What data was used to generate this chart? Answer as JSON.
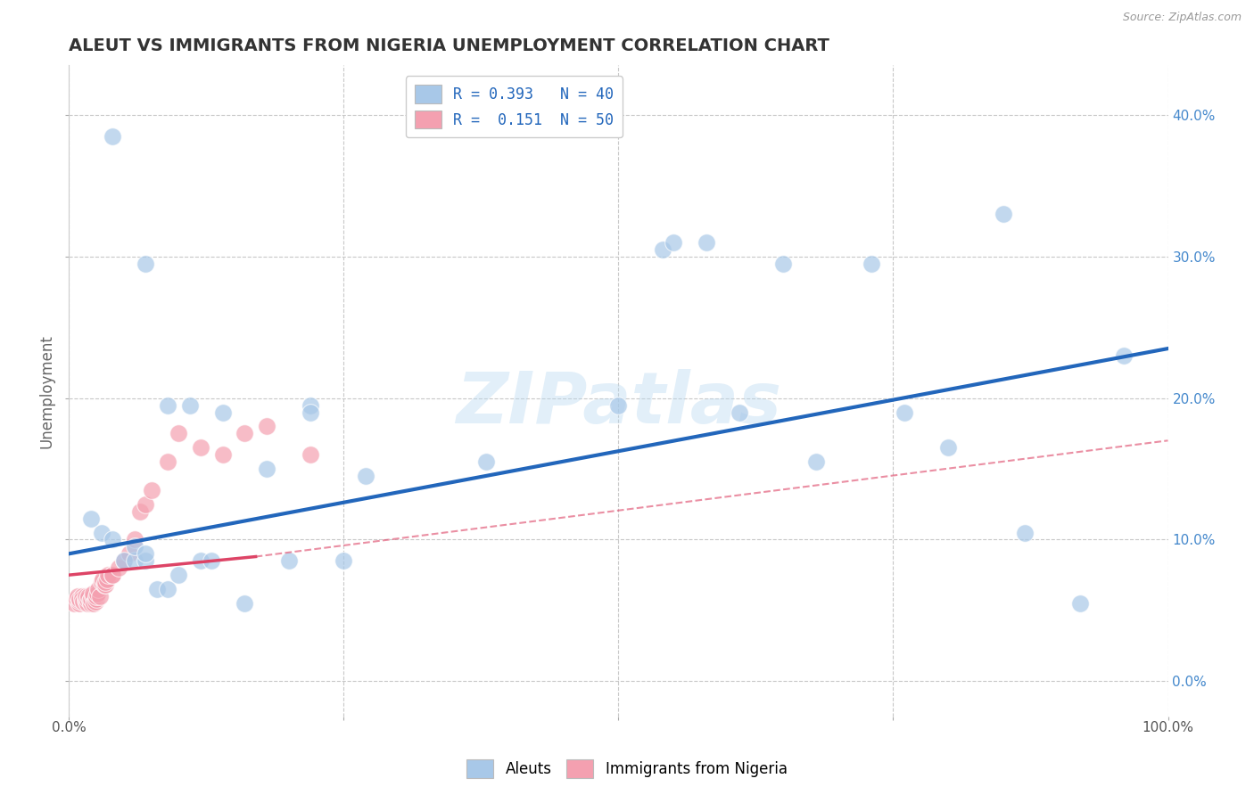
{
  "title": "ALEUT VS IMMIGRANTS FROM NIGERIA UNEMPLOYMENT CORRELATION CHART",
  "source": "Source: ZipAtlas.com",
  "ylabel": "Unemployment",
  "xlim": [
    0,
    1
  ],
  "ylim": [
    -0.025,
    0.435
  ],
  "yticks": [
    0.0,
    0.1,
    0.2,
    0.3,
    0.4
  ],
  "ytick_labels": [
    "0.0%",
    "10.0%",
    "20.0%",
    "30.0%",
    "40.0%"
  ],
  "legend_r1": "R = 0.393",
  "legend_n1": "N = 40",
  "legend_r2": "R =  0.151",
  "legend_n2": "N = 50",
  "blue_color": "#a8c8e8",
  "pink_color": "#f4a0b0",
  "line_blue": "#2266bb",
  "line_pink": "#dd4466",
  "background_color": "#ffffff",
  "grid_color": "#c8c8c8",
  "aleut_x": [
    0.04,
    0.07,
    0.09,
    0.11,
    0.14,
    0.18,
    0.22,
    0.22,
    0.27,
    0.38,
    0.5,
    0.54,
    0.55,
    0.58,
    0.61,
    0.65,
    0.68,
    0.73,
    0.76,
    0.8,
    0.85,
    0.87,
    0.92,
    0.96,
    0.02,
    0.03,
    0.04,
    0.05,
    0.06,
    0.06,
    0.07,
    0.07,
    0.08,
    0.09,
    0.1,
    0.12,
    0.13,
    0.16,
    0.2,
    0.25
  ],
  "aleut_y": [
    0.385,
    0.295,
    0.195,
    0.195,
    0.19,
    0.15,
    0.195,
    0.19,
    0.145,
    0.155,
    0.195,
    0.305,
    0.31,
    0.31,
    0.19,
    0.295,
    0.155,
    0.295,
    0.19,
    0.165,
    0.33,
    0.105,
    0.055,
    0.23,
    0.115,
    0.105,
    0.1,
    0.085,
    0.085,
    0.095,
    0.085,
    0.09,
    0.065,
    0.065,
    0.075,
    0.085,
    0.085,
    0.055,
    0.085,
    0.085
  ],
  "nigeria_x": [
    0.005,
    0.007,
    0.008,
    0.01,
    0.01,
    0.01,
    0.012,
    0.012,
    0.013,
    0.015,
    0.015,
    0.015,
    0.017,
    0.017,
    0.018,
    0.019,
    0.02,
    0.02,
    0.022,
    0.022,
    0.023,
    0.024,
    0.025,
    0.025,
    0.026,
    0.027,
    0.028,
    0.03,
    0.031,
    0.032,
    0.033,
    0.033,
    0.035,
    0.036,
    0.04,
    0.04,
    0.045,
    0.05,
    0.055,
    0.06,
    0.065,
    0.07,
    0.075,
    0.09,
    0.1,
    0.12,
    0.14,
    0.16,
    0.18,
    0.22
  ],
  "nigeria_y": [
    0.055,
    0.058,
    0.06,
    0.055,
    0.057,
    0.058,
    0.06,
    0.058,
    0.056,
    0.057,
    0.058,
    0.06,
    0.055,
    0.058,
    0.06,
    0.057,
    0.055,
    0.058,
    0.06,
    0.062,
    0.055,
    0.056,
    0.058,
    0.06,
    0.062,
    0.065,
    0.06,
    0.07,
    0.072,
    0.068,
    0.068,
    0.07,
    0.072,
    0.075,
    0.075,
    0.075,
    0.08,
    0.085,
    0.09,
    0.1,
    0.12,
    0.125,
    0.135,
    0.155,
    0.175,
    0.165,
    0.16,
    0.175,
    0.18,
    0.16
  ],
  "blue_line_x0": 0.0,
  "blue_line_y0": 0.09,
  "blue_line_x1": 1.0,
  "blue_line_y1": 0.235,
  "pink_line_solid_x0": 0.0,
  "pink_line_solid_y0": 0.075,
  "pink_line_solid_x1": 0.17,
  "pink_line_solid_y1": 0.088,
  "pink_line_dash_x0": 0.17,
  "pink_line_dash_y0": 0.088,
  "pink_line_dash_x1": 1.0,
  "pink_line_dash_y1": 0.17
}
